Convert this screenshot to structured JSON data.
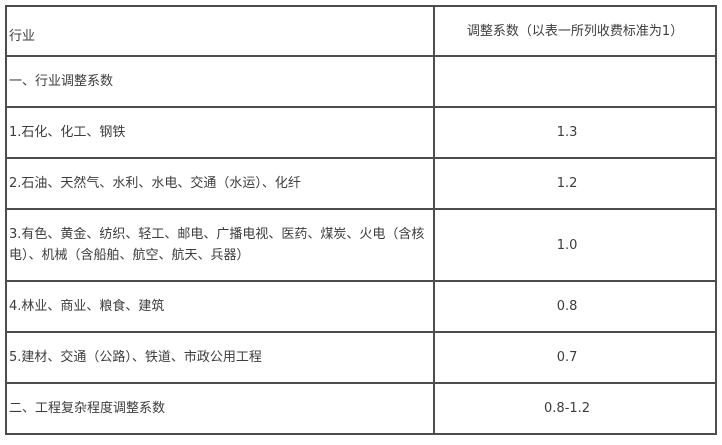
{
  "colors": {
    "border": "#4d4d4d",
    "text": "#3d3d3d",
    "background": "#ffffff"
  },
  "table": {
    "header": {
      "industry_label": "行业",
      "coefficient_label": "调整系数（以表一所列收费标准为1）"
    },
    "rows": [
      {
        "label": "一、行业调整系数",
        "value": ""
      },
      {
        "label": "1.石化、化工、钢铁",
        "value": "1.3"
      },
      {
        "label": "2.石油、天然气、水利、水电、交通（水运）、化纤",
        "value": "1.2"
      },
      {
        "label": "3.有色、黄金、纺织、轻工、邮电、广播电视、医药、煤炭、火电（含核电）、机械（含船舶、航空、航天、兵器）",
        "value": "1.0"
      },
      {
        "label": "4.林业、商业、粮食、建筑",
        "value": "0.8"
      },
      {
        "label": "5.建材、交通（公路）、铁道、市政公用工程",
        "value": "0.7"
      },
      {
        "label": "二、工程复杂程度调整系数",
        "value": "0.8-1.2"
      }
    ]
  }
}
